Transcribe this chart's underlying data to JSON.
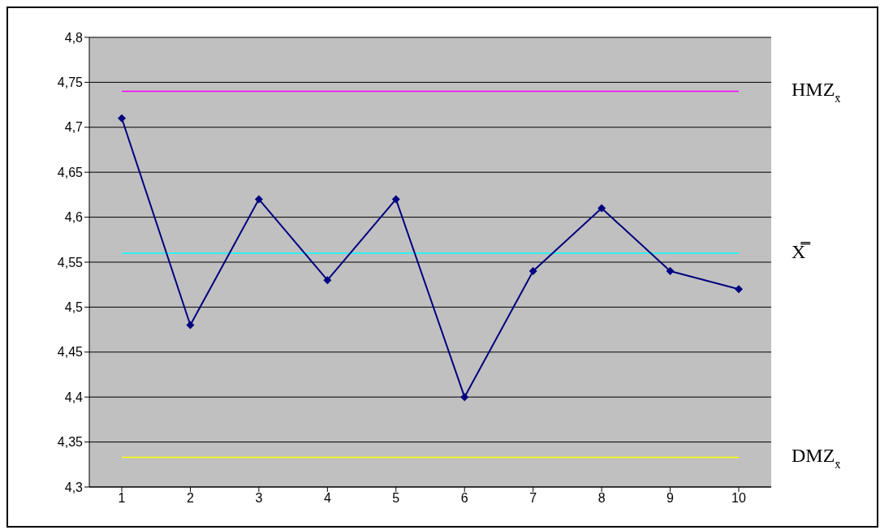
{
  "chart_data": {
    "type": "line",
    "categories": [
      "1",
      "2",
      "3",
      "4",
      "5",
      "6",
      "7",
      "8",
      "9",
      "10"
    ],
    "series": [
      {
        "color": "#000080",
        "values": [
          4.71,
          4.48,
          4.62,
          4.53,
          4.62,
          4.4,
          4.54,
          4.61,
          4.54,
          4.52
        ]
      }
    ],
    "ylim": [
      4.3,
      4.8
    ],
    "yticks": [
      {
        "value": 4.3,
        "label": "4,3"
      },
      {
        "value": 4.35,
        "label": "4,35"
      },
      {
        "value": 4.4,
        "label": "4,4"
      },
      {
        "value": 4.45,
        "label": "4,45"
      },
      {
        "value": 4.5,
        "label": "4,5"
      },
      {
        "value": 4.55,
        "label": "4,55"
      },
      {
        "value": 4.6,
        "label": "4,6"
      },
      {
        "value": 4.65,
        "label": "4,65"
      },
      {
        "value": 4.7,
        "label": "4,7"
      },
      {
        "value": 4.75,
        "label": "4,75"
      },
      {
        "value": 4.8,
        "label": "4,8"
      }
    ],
    "ref_lines": [
      {
        "axis": "y",
        "value": 4.74,
        "label": "HMZ$_{x̄}$",
        "color": "#ff00ff"
      },
      {
        "axis": "y",
        "value": 4.56,
        "label": "X̿",
        "color": "#00ffff"
      },
      {
        "axis": "y",
        "value": 4.333,
        "label": "DMZ$_{x̄}$",
        "color": "#ffff00"
      }
    ],
    "grid": "y",
    "legend": false,
    "marker": "diamond",
    "line_style": "solid"
  }
}
